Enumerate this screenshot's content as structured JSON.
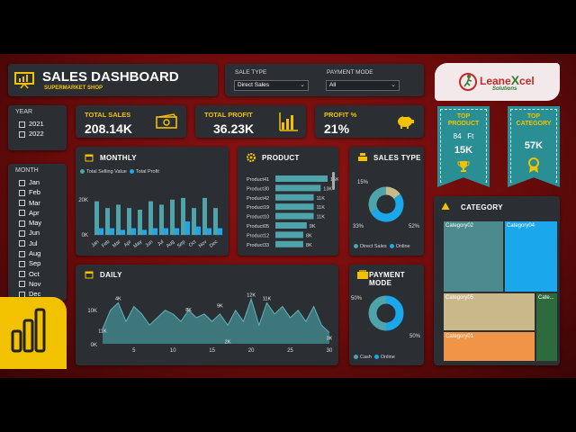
{
  "header": {
    "title": "SALES DASHBOARD",
    "subtitle": "SUPERMARKET SHOP"
  },
  "filters": {
    "sale_type": {
      "label": "SALE TYPE",
      "value": "Direct Sales"
    },
    "payment_mode": {
      "label": "PAYMENT MODE",
      "value": "All"
    }
  },
  "logo": {
    "text_part1": "Leane",
    "text_x": "X",
    "text_part2": "cel",
    "tagline": "Solutions"
  },
  "year_slicer": {
    "title": "YEAR",
    "items": [
      "2021",
      "2022"
    ]
  },
  "month_slicer": {
    "title": "MONTH",
    "items": [
      "Jan",
      "Feb",
      "Mar",
      "Apr",
      "May",
      "Jun",
      "Jul",
      "Aug",
      "Sep",
      "Oct",
      "Nov",
      "Dec"
    ]
  },
  "kpis": {
    "total_sales": {
      "label": "TOTAL SALES",
      "value": "208.14K"
    },
    "total_profit": {
      "label": "TOTAL PROFIT",
      "value": "36.23K"
    },
    "profit_pct": {
      "label": "PROFIT %",
      "value": "21%"
    }
  },
  "top_product": {
    "title_line1": "TOP",
    "title_line2": "PRODUCT",
    "id": "84",
    "unit": "Ft",
    "value": "15K"
  },
  "top_category": {
    "title_line1": "TOP",
    "title_line2": "CATEGORY",
    "value": "57K"
  },
  "monthly": {
    "title": "MONTHLY",
    "legend": [
      "Total Selling Value",
      "Total Profit"
    ],
    "yticks": [
      "20K",
      "0K"
    ],
    "months": [
      "Jan",
      "Feb",
      "Mar",
      "Apr",
      "May",
      "Jun",
      "Jul",
      "Aug",
      "Sep",
      "Oct",
      "Nov",
      "Dec"
    ]
  },
  "product": {
    "title": "PRODUCT",
    "items": [
      {
        "name": "Product41",
        "label": "15K"
      },
      {
        "name": "Product30",
        "label": "13K"
      },
      {
        "name": "Product42",
        "label": "11K"
      },
      {
        "name": "Product19",
        "label": "11K"
      },
      {
        "name": "Product10",
        "label": "11K"
      },
      {
        "name": "Product05",
        "label": "9K"
      },
      {
        "name": "Product12",
        "label": "8K"
      },
      {
        "name": "Product33",
        "label": "8K"
      }
    ]
  },
  "sales_type": {
    "title": "SALES TYPE",
    "label_top": "15%",
    "label_left": "33%",
    "label_right": "52%",
    "legend": [
      "Direct Sales",
      "Online"
    ]
  },
  "payment_mode": {
    "title": "PAYMENT MODE",
    "label_left": "50%",
    "label_right": "50%",
    "legend": [
      "Cash",
      "Online"
    ]
  },
  "daily": {
    "title": "DAILY",
    "yticks": [
      "10K",
      "0K"
    ],
    "xticks": [
      "5",
      "10",
      "15",
      "20",
      "25",
      "30"
    ],
    "annotations": [
      "11K",
      "4K",
      "8K",
      "9K",
      "12K",
      "11K",
      "2K",
      "3K"
    ]
  },
  "category": {
    "title": "CATEGORY",
    "items": [
      {
        "name": "Category02",
        "value": 57
      },
      {
        "name": "Category04",
        "value": 45
      },
      {
        "name": "Category05",
        "value": 35
      },
      {
        "name": "Category01",
        "value": 28
      },
      {
        "name": "Cate...",
        "value": 14
      }
    ]
  },
  "colors": {
    "accent": "#f2c200",
    "teal": "#4fa3ab",
    "blue": "#1aa7ec",
    "panel": "#2b2f33"
  },
  "chart_data": [
    {
      "type": "bar",
      "title": "MONTHLY",
      "categories": [
        "Jan",
        "Feb",
        "Mar",
        "Apr",
        "May",
        "Jun",
        "Jul",
        "Aug",
        "Sep",
        "Oct",
        "Nov",
        "Dec"
      ],
      "series": [
        {
          "name": "Total Selling Value",
          "values": [
            20,
            16,
            18,
            16,
            15,
            20,
            18,
            21,
            22,
            16,
            22,
            16
          ]
        },
        {
          "name": "Total Profit",
          "values": [
            4,
            4,
            3,
            4,
            3,
            4,
            4,
            4,
            8,
            5,
            4,
            4
          ]
        }
      ],
      "ylim": [
        0,
        30
      ]
    },
    {
      "type": "bar",
      "title": "PRODUCT",
      "categories": [
        "Product41",
        "Product30",
        "Product42",
        "Product19",
        "Product10",
        "Product05",
        "Product12",
        "Product33"
      ],
      "values": [
        15,
        13,
        11,
        11,
        11,
        9,
        8,
        8
      ]
    },
    {
      "type": "pie",
      "title": "SALES TYPE",
      "categories": [
        "Direct Sales",
        "Online"
      ],
      "values": [
        52,
        33
      ]
    },
    {
      "type": "pie",
      "title": "PAYMENT MODE",
      "categories": [
        "Cash",
        "Online"
      ],
      "values": [
        50,
        50
      ]
    },
    {
      "type": "area",
      "title": "DAILY",
      "x": [
        1,
        2,
        3,
        4,
        5,
        6,
        7,
        8,
        9,
        10,
        11,
        12,
        13,
        14,
        15,
        16,
        17,
        18,
        19,
        20,
        21,
        22,
        23,
        24,
        25,
        26,
        27,
        28,
        29,
        30
      ],
      "values": [
        4,
        9,
        11,
        6,
        10,
        8,
        5,
        7,
        9,
        8,
        6,
        9,
        7,
        8,
        6,
        8,
        5,
        9,
        6,
        12,
        5,
        11,
        8,
        10,
        7,
        9,
        6,
        10,
        5,
        3
      ],
      "ylim": [
        0,
        14
      ]
    }
  ]
}
